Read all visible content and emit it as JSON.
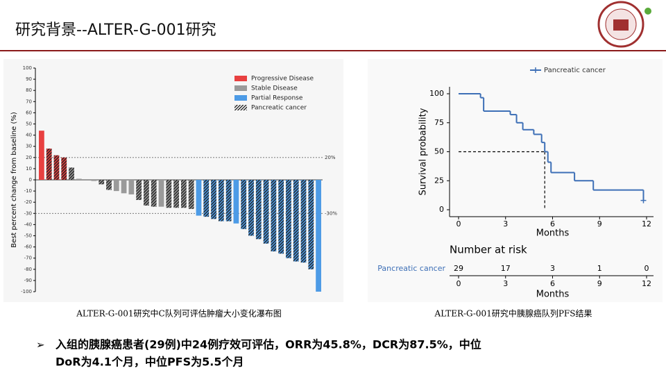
{
  "slide": {
    "title": "研究背景--ALTER-G-001研究",
    "captions": [
      "ALTER-G-001研究中C队列可评估肿瘤大小变化瀑布图",
      "ALTER-G-001研究中胰腺癌队列PFS结果"
    ],
    "bullet": [
      "入组的胰腺癌患者(29例)中24例疗效可评估，ORR为45.8%，DCR为87.5%，中位",
      "DoR为4.1个月，中位PFS为5.5个月"
    ]
  },
  "chart_data": [
    {
      "type": "bar",
      "ylabel": "Best percent change from baseline (%)",
      "ylim": [
        -100,
        100
      ],
      "yticks": [
        -100,
        -90,
        -80,
        -70,
        -60,
        -50,
        -40,
        -30,
        -20,
        -10,
        0,
        10,
        20,
        30,
        40,
        50,
        60,
        70,
        80,
        90,
        100
      ],
      "values": [
        44,
        28,
        22,
        20,
        11,
        1,
        0,
        -1,
        -4,
        -9,
        -10,
        -12,
        -13,
        -18,
        -23,
        -24,
        -24,
        -25,
        -25,
        -25,
        -26,
        -32,
        -33,
        -35,
        -37,
        -37,
        -39,
        -44,
        -50,
        -53,
        -57,
        -64,
        -66,
        -70,
        -73,
        -74,
        -80,
        -100
      ],
      "bar_groups": [
        0,
        0,
        0,
        0,
        1,
        1,
        1,
        1,
        1,
        1,
        1,
        1,
        1,
        1,
        1,
        1,
        1,
        1,
        1,
        1,
        1,
        2,
        2,
        2,
        2,
        2,
        2,
        2,
        2,
        2,
        2,
        2,
        2,
        2,
        2,
        2,
        2,
        2
      ],
      "bar_hatched": [
        false,
        true,
        true,
        true,
        true,
        false,
        false,
        false,
        true,
        true,
        false,
        false,
        false,
        true,
        true,
        true,
        false,
        true,
        true,
        true,
        true,
        false,
        true,
        true,
        true,
        true,
        false,
        true,
        true,
        true,
        true,
        true,
        true,
        true,
        true,
        true,
        true,
        false
      ],
      "legend": [
        {
          "name": "Progressive Disease",
          "color": "#e84040"
        },
        {
          "name": "Stable Disease",
          "color": "#9a9a9a"
        },
        {
          "name": "Partial Response",
          "color": "#4d9be6"
        },
        {
          "name": "Pancreatic cancer",
          "color": "#ffffff",
          "hatched": true
        }
      ],
      "reference_lines": [
        {
          "value": 20,
          "label": "20%"
        },
        {
          "value": -30,
          "label": "-30%"
        }
      ]
    },
    {
      "type": "line",
      "step": true,
      "xlabel": "Months",
      "ylabel": "Survival probability",
      "xlim": [
        0,
        12
      ],
      "xticks": [
        0,
        3,
        6,
        9,
        12
      ],
      "ylim": [
        0,
        100
      ],
      "yticks": [
        0,
        25,
        50,
        75,
        100
      ],
      "series": [
        {
          "name": "Pancreatic cancer",
          "color": "#3d6fb6",
          "x": [
            0,
            1.4,
            1.6,
            3.3,
            3.7,
            4.1,
            4.8,
            5.3,
            5.5,
            5.7,
            5.9,
            7.4,
            8.6,
            11.8
          ],
          "values": [
            100,
            96.6,
            85,
            82,
            75,
            69,
            65,
            58,
            50,
            41,
            32,
            25,
            17,
            8
          ]
        }
      ],
      "median": {
        "x": 5.5,
        "y": 50
      },
      "risk_table": {
        "title": "Number at risk",
        "row_label": "Pancreatic cancer",
        "values": [
          29,
          17,
          3,
          1,
          0
        ]
      }
    }
  ]
}
